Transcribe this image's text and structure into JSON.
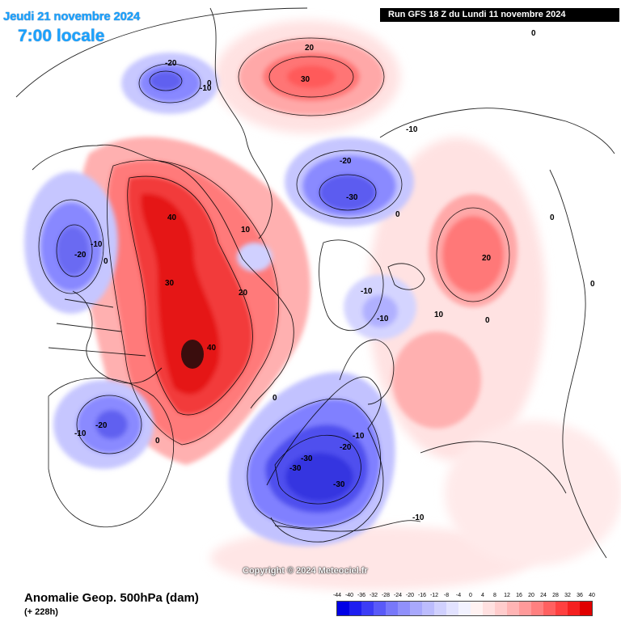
{
  "header": {
    "date": "Jeudi 21 novembre 2024",
    "time": "7:00 locale",
    "run": "Run GFS 18 Z du Lundi 11 novembre 2024"
  },
  "footer": {
    "title": "Anomalie Geop. 500hPa (dam)",
    "lead": "(+ 228h)",
    "copyright": "Copyright © 2024 Meteociel.fr"
  },
  "legend": {
    "ticks": [
      "-44",
      "-40",
      "-36",
      "-32",
      "-28",
      "-24",
      "-20",
      "-16",
      "-12",
      "-8",
      "-4",
      "0",
      "4",
      "8",
      "12",
      "16",
      "20",
      "24",
      "28",
      "32",
      "36",
      "40"
    ],
    "colors": [
      "#0000e6",
      "#1e1ef0",
      "#3c3cf5",
      "#5a5af8",
      "#7878fa",
      "#9090fb",
      "#a8a8fc",
      "#bcbcfd",
      "#d0d0fe",
      "#e2e2ff",
      "#f2f2ff",
      "#fff2f2",
      "#ffe0e0",
      "#ffcccc",
      "#ffb4b4",
      "#ff9a9a",
      "#ff8080",
      "#ff6060",
      "#ff4040",
      "#f52020",
      "#e00000"
    ]
  },
  "contour_labels": {
    "pacific_low": [
      "-20",
      "-10",
      "0"
    ],
    "pacific_high": [
      "20",
      "30"
    ],
    "siberia_low": [
      "-10",
      "-20",
      "-30",
      "0"
    ],
    "west_na_low": [
      "-10",
      "-20",
      "0"
    ],
    "na_ridge": [
      "40",
      "30",
      "40",
      "10",
      "20",
      "0"
    ],
    "greenland": [
      "-10",
      "-10"
    ],
    "atlantic_low": [
      "-20",
      "-10",
      "0"
    ],
    "europe_low": [
      "-10",
      "-20",
      "-30",
      "-30",
      "-30",
      "-10"
    ],
    "asia_high": [
      "20",
      "10",
      "0",
      "0",
      "0"
    ],
    "north_edge": [
      "0"
    ]
  }
}
